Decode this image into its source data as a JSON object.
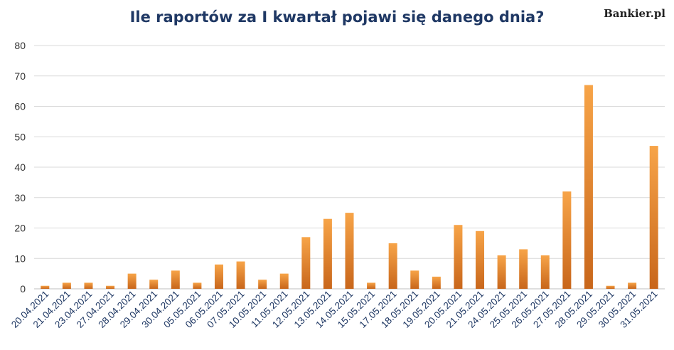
{
  "header": {
    "title": "Ile raportów za I kwartał pojawi się danego dnia?",
    "brand": "Bankier.pl"
  },
  "chart_data": {
    "type": "bar",
    "title": "Ile raportów za I kwartał pojawi się danego dnia?",
    "xlabel": "",
    "ylabel": "",
    "ylim": [
      0,
      80
    ],
    "yticks": [
      0,
      10,
      20,
      30,
      40,
      50,
      60,
      70,
      80
    ],
    "grid": true,
    "legend": "none",
    "bar_color_top": "#f7a448",
    "bar_color_bottom": "#c8661b",
    "categories": [
      "20.04.2021",
      "21.04.2021",
      "23.04.2021",
      "27.04.2021",
      "28.04.2021",
      "29.04.2021",
      "30.04.2021",
      "05.05.2021",
      "06.05.2021",
      "07.05.2021",
      "10.05.2021",
      "11.05.2021",
      "12.05.2021",
      "13.05.2021",
      "14.05.2021",
      "15.05.2021",
      "17.05.2021",
      "18.05.2021",
      "19.05.2021",
      "20.05.2021",
      "21.05.2021",
      "24.05.2021",
      "25.05.2021",
      "26.05.2021",
      "27.05.2021",
      "28.05.2021",
      "29.05.2021",
      "30.05.2021",
      "31.05.2021"
    ],
    "values": [
      1,
      2,
      2,
      1,
      5,
      3,
      6,
      2,
      8,
      9,
      3,
      5,
      17,
      23,
      25,
      2,
      15,
      6,
      4,
      21,
      19,
      11,
      13,
      11,
      32,
      67,
      1,
      2,
      47
    ]
  }
}
